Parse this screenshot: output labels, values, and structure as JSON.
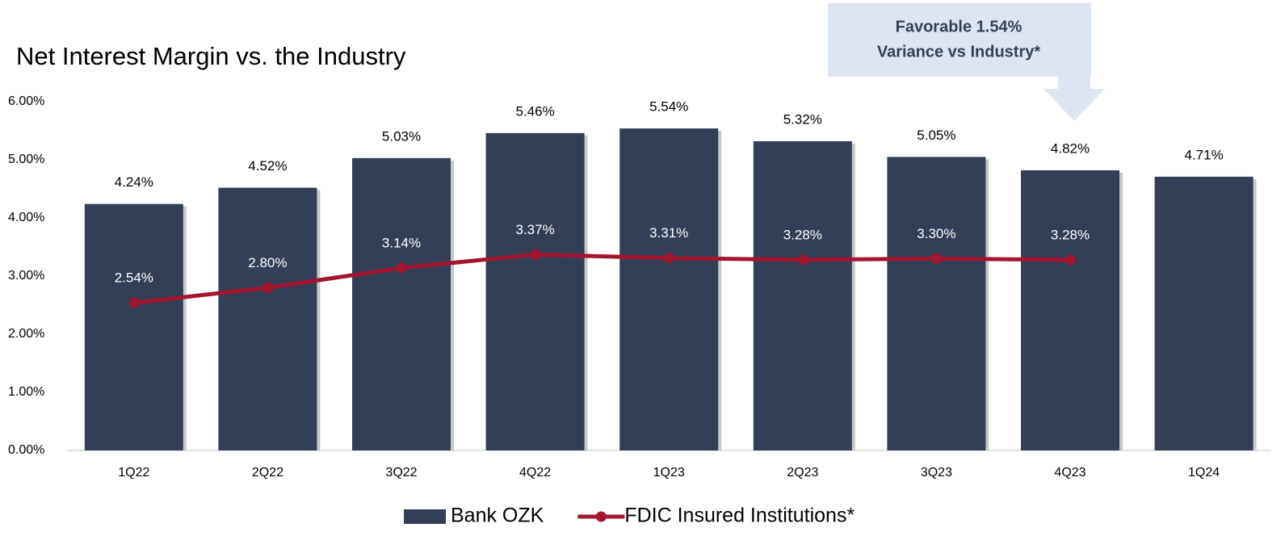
{
  "chart_data": {
    "type": "bar",
    "title": "Net Interest Margin vs. the Industry",
    "annotation": [
      "Favorable 1.54%",
      "Variance vs Industry*"
    ],
    "categories": [
      "1Q22",
      "2Q22",
      "3Q22",
      "4Q22",
      "1Q23",
      "2Q23",
      "3Q23",
      "4Q23",
      "1Q24"
    ],
    "series": [
      {
        "name": "Bank OZK",
        "type": "bar",
        "color": "#333f57",
        "values": [
          4.24,
          4.52,
          5.03,
          5.46,
          5.54,
          5.32,
          5.05,
          4.82,
          4.71
        ],
        "value_labels": [
          "4.24%",
          "4.52%",
          "5.03%",
          "5.46%",
          "5.54%",
          "5.32%",
          "5.05%",
          "4.82%",
          "4.71%"
        ]
      },
      {
        "name": "FDIC Insured Institutions*",
        "type": "line",
        "color": "#a3162f",
        "values": [
          2.54,
          2.8,
          3.14,
          3.37,
          3.31,
          3.28,
          3.3,
          3.28,
          null
        ],
        "value_labels": [
          "2.54%",
          "2.80%",
          "3.14%",
          "3.37%",
          "3.31%",
          "3.28%",
          "3.30%",
          "3.28%",
          null
        ]
      }
    ],
    "ylim": [
      0,
      6
    ],
    "yticks": [
      {
        "value": 0,
        "label": "0.00%"
      },
      {
        "value": 1,
        "label": "1.00%"
      },
      {
        "value": 2,
        "label": "2.00%"
      },
      {
        "value": 3,
        "label": "3.00%"
      },
      {
        "value": 4,
        "label": "4.00%"
      },
      {
        "value": 5,
        "label": "5.00%"
      },
      {
        "value": 6,
        "label": "6.00%"
      }
    ],
    "legend": "bottom"
  }
}
